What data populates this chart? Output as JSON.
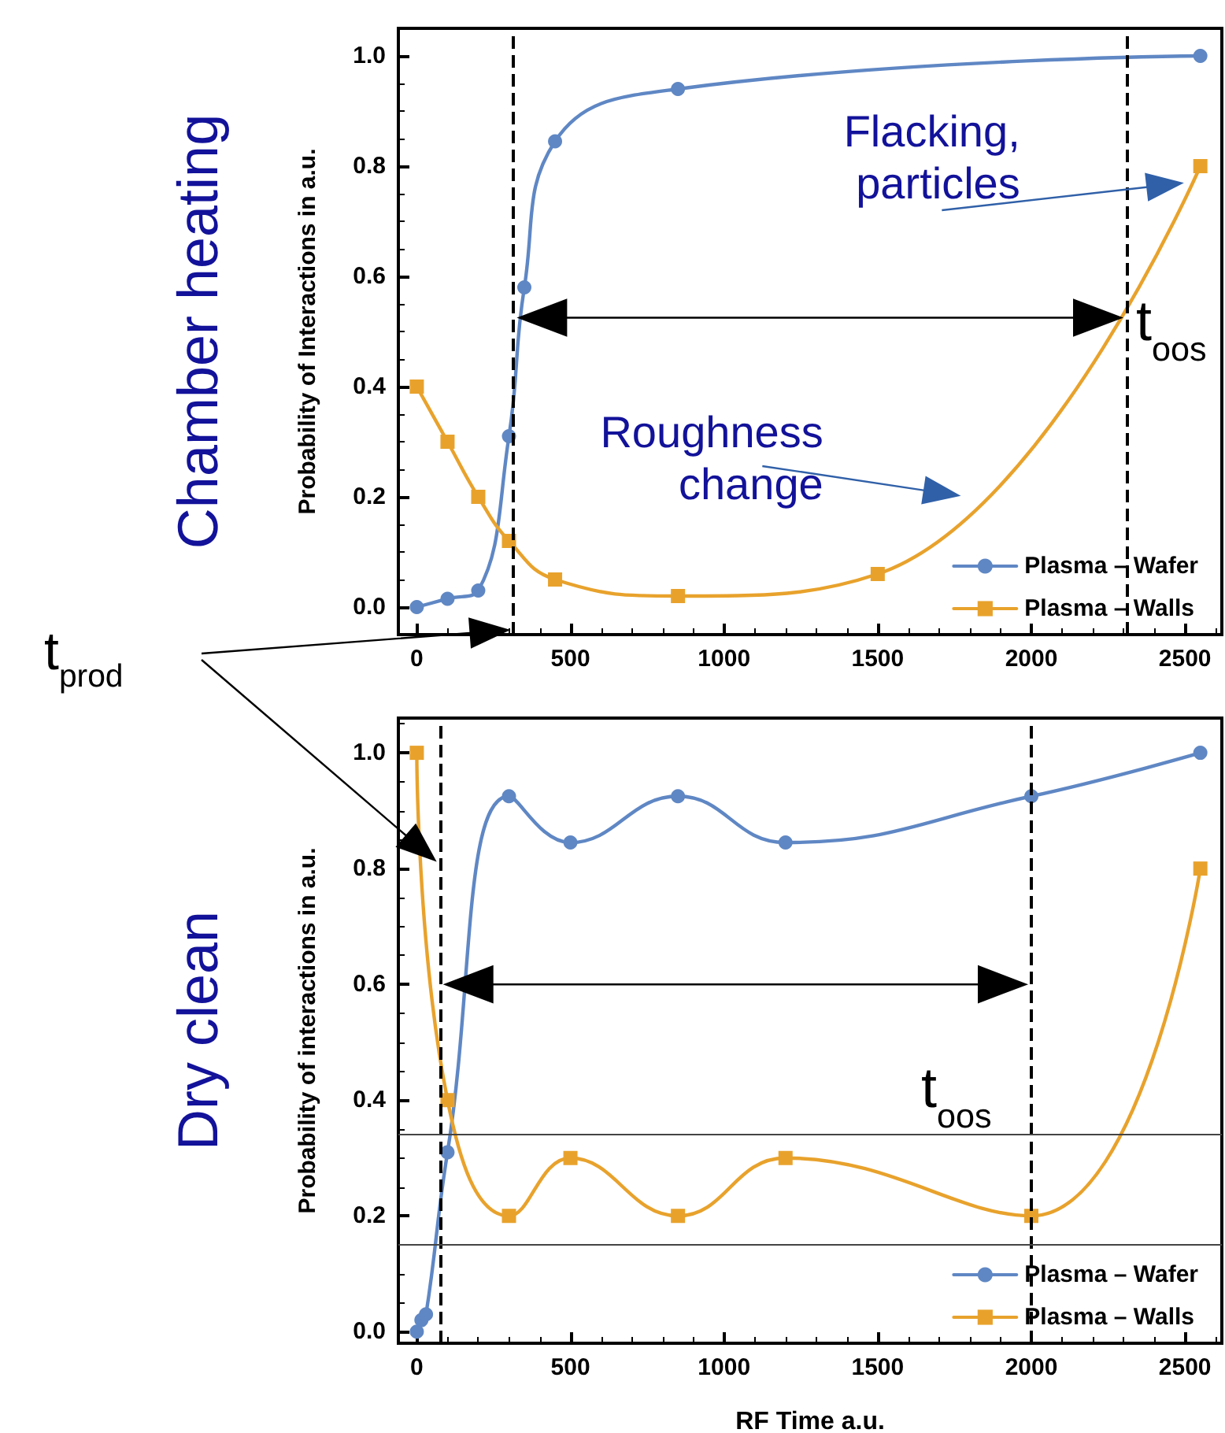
{
  "chart_data": [
    {
      "type": "line",
      "ylabel": "Probability of Interactions in a.u.",
      "xlim": [
        -60,
        2620
      ],
      "ylim": [
        -0.05,
        1.05
      ],
      "xticks": [
        0,
        500,
        1000,
        1500,
        2000,
        2500
      ],
      "yticks": [
        {
          "value": 0,
          "label": "0.0"
        },
        {
          "value": 0.2,
          "label": "0.2"
        },
        {
          "value": 0.4,
          "label": "0.4"
        },
        {
          "value": 0.6,
          "label": "0.6"
        },
        {
          "value": 0.8,
          "label": "0.8"
        },
        {
          "value": 1,
          "label": "1.0"
        }
      ],
      "grid": false,
      "legend": "bottom right",
      "line_style": "solid",
      "series": [
        {
          "name": "Plasma – Wafer",
          "color": "#5f87c4",
          "marker": "circle",
          "x": [
            0,
            100,
            200,
            300,
            350,
            450,
            850,
            2550
          ],
          "values": [
            0,
            0.015,
            0.03,
            0.31,
            0.58,
            0.845,
            0.94,
            1.0
          ]
        },
        {
          "name": "Plasma – Walls",
          "color": "#e8a22c",
          "marker": "square",
          "x": [
            0,
            100,
            200,
            300,
            450,
            850,
            1500,
            2550
          ],
          "values": [
            0.4,
            0.3,
            0.2,
            0.12,
            0.05,
            0.02,
            0.06,
            0.8
          ]
        }
      ],
      "ref_lines": [
        {
          "axis": "x",
          "value": 315,
          "label": null,
          "color": "#000000",
          "line_style": "dashed"
        },
        {
          "axis": "x",
          "value": 2310,
          "label": null,
          "color": "#000000",
          "line_style": "dashed"
        }
      ],
      "annotations": [
        "Chamber heating",
        "Flacking,\nparticles",
        "Roughness\nchange",
        {
          "text": "t$_{oos}$",
          "x": 2310,
          "y": 0.525
        },
        "t$_{prod}$"
      ]
    },
    {
      "type": "line",
      "ylabel": "Probability of interactions in a.u.",
      "xlabel": "RF Time a.u.",
      "xlim": [
        -60,
        2620
      ],
      "ylim": [
        -0.02,
        1.06
      ],
      "xticks": [
        0,
        500,
        1000,
        1500,
        2000,
        2500
      ],
      "yticks": [
        {
          "value": 0,
          "label": "0.0"
        },
        {
          "value": 0.2,
          "label": "0.2"
        },
        {
          "value": 0.4,
          "label": "0.4"
        },
        {
          "value": 0.6,
          "label": "0.6"
        },
        {
          "value": 0.8,
          "label": "0.8"
        },
        {
          "value": 1,
          "label": "1.0"
        }
      ],
      "grid": false,
      "legend": "bottom right",
      "line_style": "solid",
      "series": [
        {
          "name": "Plasma – Wafer",
          "color": "#5f87c4",
          "marker": "circle",
          "x": [
            0,
            15,
            30,
            100,
            300,
            500,
            850,
            1200,
            2000,
            2550
          ],
          "values": [
            0,
            0.02,
            0.03,
            0.31,
            0.925,
            0.845,
            0.925,
            0.845,
            0.925,
            1.0
          ]
        },
        {
          "name": "Plasma – Walls",
          "color": "#e8a22c",
          "marker": "square",
          "x": [
            0,
            100,
            300,
            500,
            850,
            1200,
            2000,
            2550
          ],
          "values": [
            1.0,
            0.4,
            0.2,
            0.3,
            0.2,
            0.3,
            0.2,
            0.8
          ]
        }
      ],
      "ref_lines": [
        {
          "axis": "x",
          "value": 75,
          "label": null,
          "color": "#000000",
          "line_style": "dashed"
        },
        {
          "axis": "x",
          "value": 2000,
          "label": null,
          "color": "#000000",
          "line_style": "dashed"
        },
        {
          "axis": "y",
          "value": 0.345,
          "label": null,
          "color": "#444444",
          "line_style": "solid"
        },
        {
          "axis": "y",
          "value": 0.15,
          "label": null,
          "color": "#444444",
          "line_style": "solid"
        }
      ],
      "annotations": [
        "Dry clean",
        {
          "text": "t$_{oos}$",
          "x": 2000,
          "y": 0.6
        }
      ]
    }
  ]
}
